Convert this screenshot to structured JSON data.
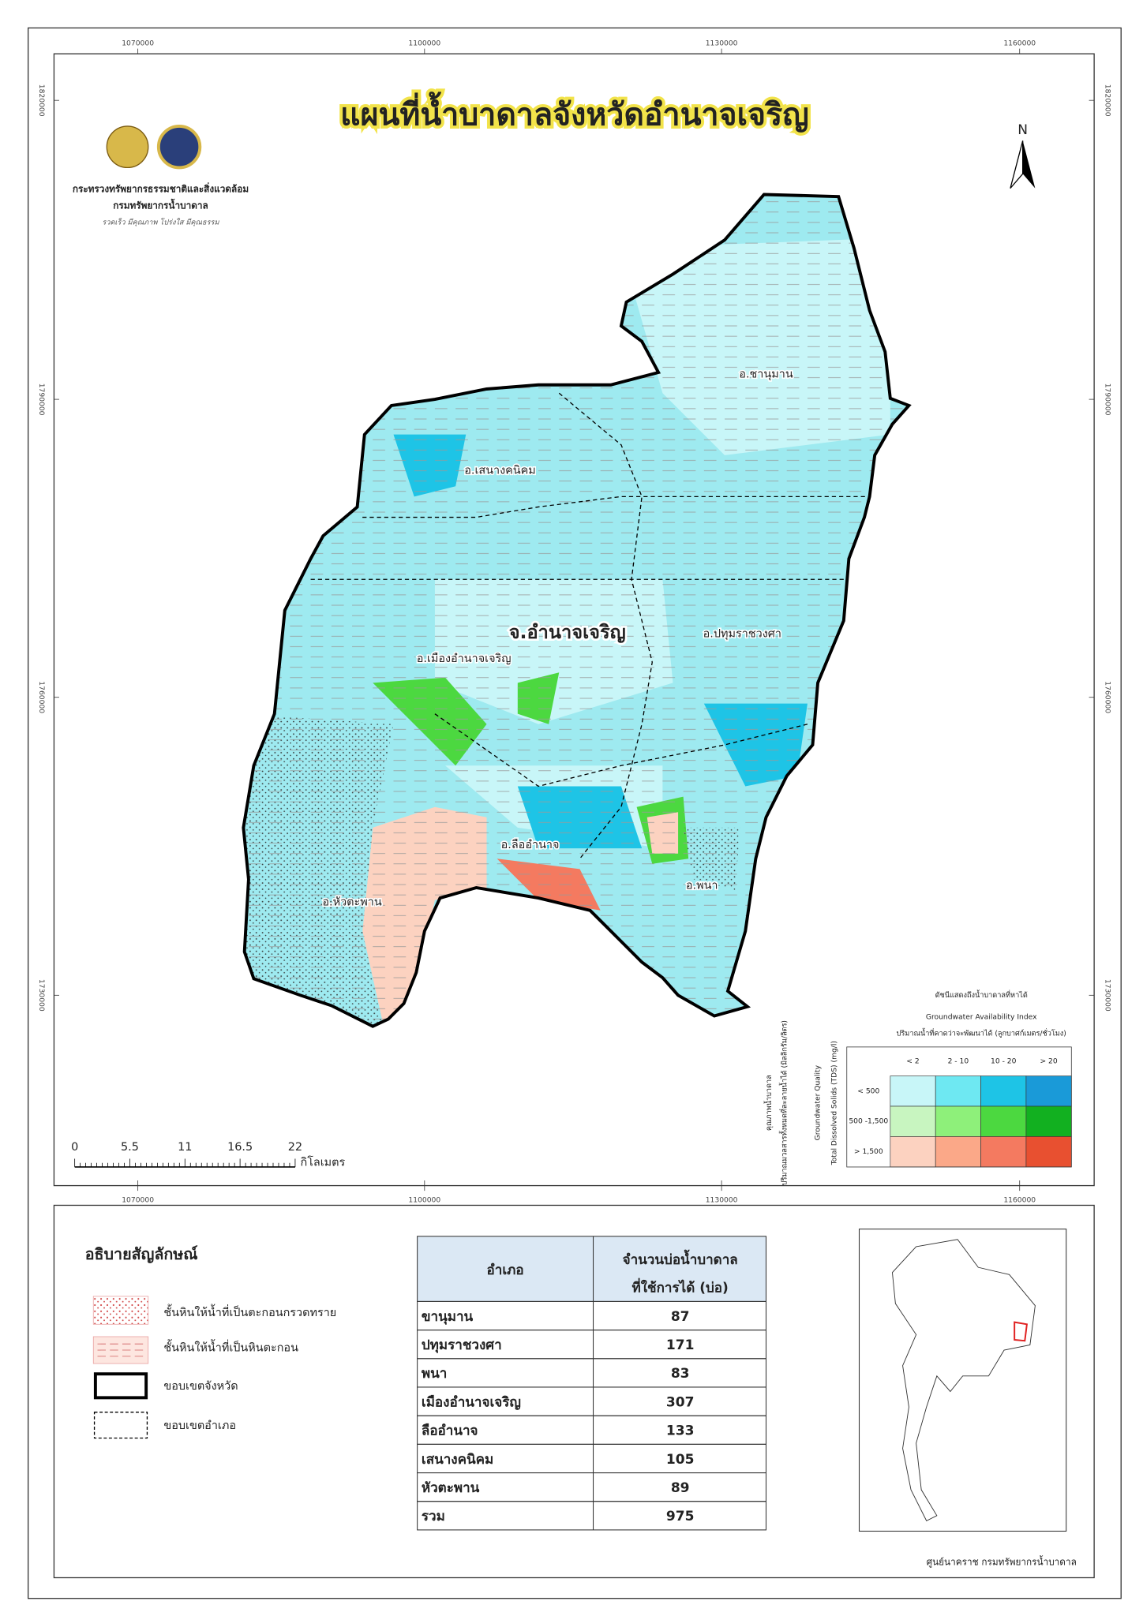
{
  "header": {
    "title": "แผนที่น้ำบาดาลจังหวัดอำนาจเจริญ",
    "ministry": "กระทรวงทรัพยากรธรรมชาติและสิ่งแวดล้อม",
    "department": "กรมทรัพยากรน้ำบาดาล",
    "motto": "รวดเร็ว มีคุณภาพ โปร่งใส มีคุณธรรม"
  },
  "map": {
    "north": "N",
    "province_label": "จ.อำนาจเจริญ",
    "districts": [
      "อ.ชานุมาน",
      "อ.เสนางคนิคม",
      "อ.ปทุมราชวงศา",
      "อ.เมืองอำนาจเจริญ",
      "อ.ลืออำนาจ",
      "อ.พนา",
      "อ.หัวตะพาน"
    ],
    "x_coords": [
      "1070000",
      "1100000",
      "1130000",
      "1160000"
    ],
    "y_coords": [
      "1820000",
      "1790000",
      "1760000",
      "1730000"
    ],
    "scale_bar": {
      "ticks": [
        "0",
        "5.5",
        "11",
        "16.5",
        "22"
      ],
      "unit": "กิโลเมตร"
    }
  },
  "availability_legend": {
    "title_th": "ดัชนีแสดงถึงน้ำบาดาลที่หาได้",
    "title_en": "Groundwater Availability Index",
    "subtitle": "ปริมาณน้ำที่คาดว่าจะพัฒนาได้ (ลูกบาศก์เมตร/ชั่วโมง)",
    "columns": [
      "< 2",
      "2 - 10",
      "10 - 20",
      "> 20"
    ],
    "rows": [
      "< 500",
      "500 -1,500",
      "> 1,500"
    ],
    "quality_labels": [
      "คุณภาพน้ำบาดาล",
      "ปริมาณมวลสารทั้งหมดที่ละลายน้ำได้ (มิลลิกรัม/ลิตร)",
      "Groundwater Quality",
      "Total Dissolved Solids (TDS) (mg/l)"
    ],
    "colors": [
      [
        "#c8f6f8",
        "#6ee8f2",
        "#1ec4e6",
        "#1a9ad8"
      ],
      [
        "#c8f5c0",
        "#8ef07a",
        "#4cd840",
        "#12b020"
      ],
      [
        "#fcd2c0",
        "#fba888",
        "#f47a60",
        "#e85030"
      ]
    ]
  },
  "legend": {
    "title": "อธิบายสัญลักษณ์",
    "items": [
      "ชั้นหินให้น้ำที่เป็นตะกอนกรวดทราย",
      "ชั้นหินให้น้ำที่เป็นหินตะกอน",
      "ขอบเขตจังหวัด",
      "ขอบเขตอำเภอ"
    ]
  },
  "table": {
    "header_district": "อำเภอ",
    "header_count": [
      "จำนวนบ่อน้ำบาดาล",
      "ที่ใช้การได้ (บ่อ)"
    ],
    "rows": [
      [
        "ขานุมาน",
        87
      ],
      [
        "ปทุมราชวงศา",
        171
      ],
      [
        "พนา",
        83
      ],
      [
        "เมืองอำนาจเจริญ",
        307
      ],
      [
        "ลืออำนาจ",
        133
      ],
      [
        "เสนางคนิคม",
        105
      ],
      [
        "หัวตะพาน",
        89
      ],
      [
        "รวม",
        975
      ]
    ]
  },
  "footer": "ศูนย์นาคราช กรมทรัพยากรน้ำบาดาล"
}
